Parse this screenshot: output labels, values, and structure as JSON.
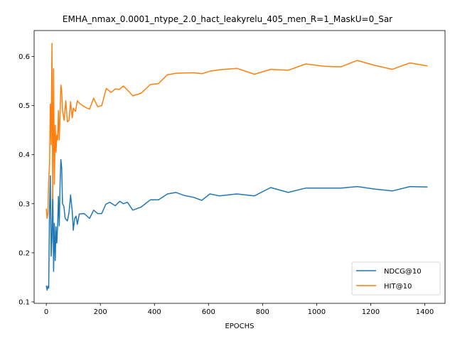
{
  "chart_data": {
    "type": "line",
    "title": "EMHA_nmax_0.0001_ntype_2.0_hact_leakyrelu_405_men_R=1_MaskU=0_Sar",
    "xlabel": "EPOCHS",
    "ylabel": "",
    "xlim": [
      -45,
      1475
    ],
    "ylim": [
      0.097,
      0.653
    ],
    "xticks": [
      0,
      200,
      400,
      600,
      800,
      1000,
      1200,
      1400
    ],
    "yticks": [
      0.1,
      0.2,
      0.3,
      0.4,
      0.5,
      0.6
    ],
    "grid": false,
    "legend": "lower-right",
    "series": [
      {
        "name": "NDCG@10",
        "color": "#1f77b4",
        "points": [
          [
            0,
            0.133
          ],
          [
            3,
            0.124
          ],
          [
            6,
            0.132
          ],
          [
            9,
            0.128
          ],
          [
            12,
            0.29
          ],
          [
            15,
            0.357
          ],
          [
            18,
            0.193
          ],
          [
            21,
            0.23
          ],
          [
            24,
            0.336
          ],
          [
            27,
            0.162
          ],
          [
            30,
            0.26
          ],
          [
            33,
            0.184
          ],
          [
            36,
            0.253
          ],
          [
            39,
            0.22
          ],
          [
            42,
            0.255
          ],
          [
            45,
            0.315
          ],
          [
            48,
            0.255
          ],
          [
            51,
            0.34
          ],
          [
            54,
            0.39
          ],
          [
            57,
            0.373
          ],
          [
            60,
            0.3
          ],
          [
            65,
            0.295
          ],
          [
            70,
            0.27
          ],
          [
            78,
            0.265
          ],
          [
            84,
            0.282
          ],
          [
            90,
            0.318
          ],
          [
            96,
            0.285
          ],
          [
            100,
            0.246
          ],
          [
            105,
            0.27
          ],
          [
            110,
            0.275
          ],
          [
            115,
            0.258
          ],
          [
            122,
            0.279
          ],
          [
            140,
            0.28
          ],
          [
            160,
            0.27
          ],
          [
            175,
            0.287
          ],
          [
            190,
            0.28
          ],
          [
            205,
            0.28
          ],
          [
            220,
            0.299
          ],
          [
            235,
            0.303
          ],
          [
            255,
            0.296
          ],
          [
            272,
            0.305
          ],
          [
            285,
            0.3
          ],
          [
            300,
            0.303
          ],
          [
            320,
            0.287
          ],
          [
            350,
            0.293
          ],
          [
            385,
            0.308
          ],
          [
            415,
            0.308
          ],
          [
            448,
            0.32
          ],
          [
            480,
            0.323
          ],
          [
            510,
            0.317
          ],
          [
            545,
            0.313
          ],
          [
            575,
            0.307
          ],
          [
            605,
            0.32
          ],
          [
            640,
            0.316
          ],
          [
            705,
            0.32
          ],
          [
            770,
            0.316
          ],
          [
            830,
            0.333
          ],
          [
            895,
            0.323
          ],
          [
            960,
            0.332
          ],
          [
            1030,
            0.332
          ],
          [
            1090,
            0.332
          ],
          [
            1150,
            0.335
          ],
          [
            1215,
            0.33
          ],
          [
            1280,
            0.326
          ],
          [
            1345,
            0.335
          ],
          [
            1410,
            0.334
          ]
        ]
      },
      {
        "name": "HIT@10",
        "color": "#ff7f0e",
        "points": [
          [
            0,
            0.29
          ],
          [
            3,
            0.27
          ],
          [
            6,
            0.28
          ],
          [
            9,
            0.35
          ],
          [
            12,
            0.38
          ],
          [
            15,
            0.503
          ],
          [
            18,
            0.42
          ],
          [
            21,
            0.627
          ],
          [
            24,
            0.31
          ],
          [
            27,
            0.575
          ],
          [
            30,
            0.34
          ],
          [
            33,
            0.46
          ],
          [
            36,
            0.405
          ],
          [
            39,
            0.44
          ],
          [
            42,
            0.43
          ],
          [
            45,
            0.49
          ],
          [
            48,
            0.43
          ],
          [
            51,
            0.485
          ],
          [
            54,
            0.542
          ],
          [
            57,
            0.53
          ],
          [
            60,
            0.49
          ],
          [
            66,
            0.47
          ],
          [
            72,
            0.51
          ],
          [
            78,
            0.467
          ],
          [
            84,
            0.47
          ],
          [
            90,
            0.508
          ],
          [
            96,
            0.475
          ],
          [
            100,
            0.495
          ],
          [
            108,
            0.488
          ],
          [
            115,
            0.51
          ],
          [
            122,
            0.505
          ],
          [
            135,
            0.5
          ],
          [
            150,
            0.495
          ],
          [
            160,
            0.493
          ],
          [
            175,
            0.515
          ],
          [
            190,
            0.498
          ],
          [
            205,
            0.5
          ],
          [
            222,
            0.535
          ],
          [
            240,
            0.527
          ],
          [
            255,
            0.534
          ],
          [
            270,
            0.533
          ],
          [
            285,
            0.54
          ],
          [
            300,
            0.532
          ],
          [
            320,
            0.52
          ],
          [
            350,
            0.525
          ],
          [
            385,
            0.543
          ],
          [
            415,
            0.545
          ],
          [
            448,
            0.563
          ],
          [
            480,
            0.566
          ],
          [
            545,
            0.567
          ],
          [
            575,
            0.565
          ],
          [
            605,
            0.57
          ],
          [
            640,
            0.573
          ],
          [
            705,
            0.576
          ],
          [
            770,
            0.564
          ],
          [
            830,
            0.574
          ],
          [
            895,
            0.572
          ],
          [
            960,
            0.585
          ],
          [
            1030,
            0.58
          ],
          [
            1090,
            0.579
          ],
          [
            1150,
            0.592
          ],
          [
            1215,
            0.582
          ],
          [
            1280,
            0.574
          ],
          [
            1345,
            0.587
          ],
          [
            1410,
            0.581
          ]
        ]
      }
    ]
  }
}
